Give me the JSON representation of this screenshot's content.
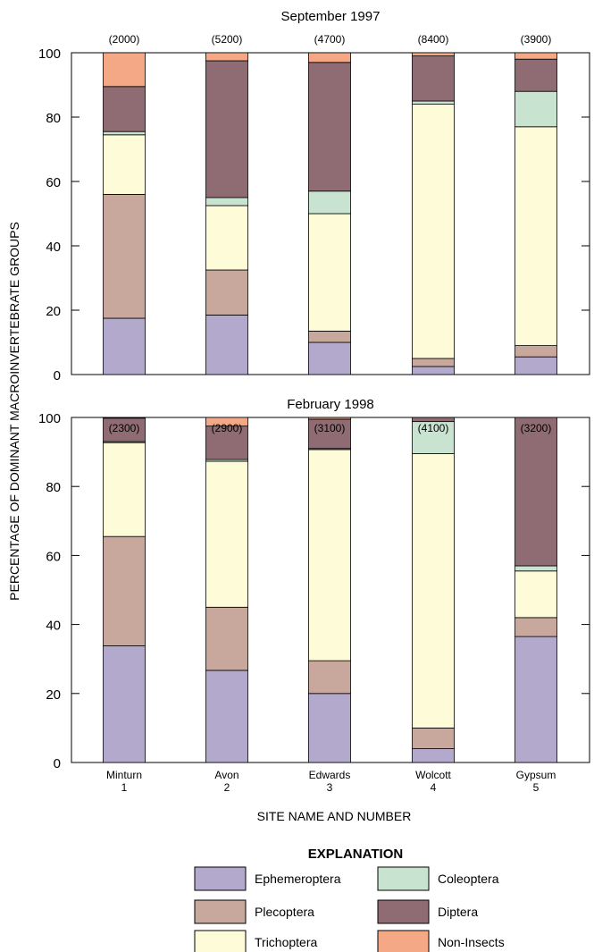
{
  "ylabel": "PERCENTAGE OF DOMINANT MACROINVERTEBRATE GROUPS",
  "xlabel": "SITE NAME AND NUMBER",
  "sites": [
    {
      "name": "Minturn",
      "number": "1"
    },
    {
      "name": "Avon",
      "number": "2"
    },
    {
      "name": "Edwards",
      "number": "3"
    },
    {
      "name": "Wolcott",
      "number": "4"
    },
    {
      "name": "Gypsum",
      "number": "5"
    }
  ],
  "legend": {
    "title": "EXPLANATION",
    "items": [
      {
        "label": "Ephemeroptera",
        "color": "#b3a9cd"
      },
      {
        "label": "Plecoptera",
        "color": "#c8a89c"
      },
      {
        "label": "Trichoptera",
        "color": "#fefbd8"
      },
      {
        "label": "Coleoptera",
        "color": "#c8e4d0"
      },
      {
        "label": "Diptera",
        "color": "#8f6b73"
      },
      {
        "label": "Non-Insects",
        "color": "#f5a885"
      }
    ]
  },
  "chart_data": [
    {
      "type": "bar",
      "stacked": true,
      "title": "September 1997",
      "categories": [
        "Minturn 1",
        "Avon 2",
        "Edwards 3",
        "Wolcott 4",
        "Gypsum 5"
      ],
      "counts": [
        "(2000)",
        "(5200)",
        "(4700)",
        "(8400)",
        "(3900)"
      ],
      "ylim": [
        0,
        100
      ],
      "yticks": [
        0,
        20,
        40,
        60,
        80,
        100
      ],
      "series": [
        {
          "name": "Ephemeroptera",
          "values": [
            17.5,
            18.5,
            10,
            2.5,
            5.5
          ]
        },
        {
          "name": "Plecoptera",
          "values": [
            38.5,
            14,
            3.5,
            2.5,
            3.5
          ]
        },
        {
          "name": "Trichoptera",
          "values": [
            18.5,
            20,
            36.5,
            79,
            68
          ]
        },
        {
          "name": "Coleoptera",
          "values": [
            1,
            2.5,
            7,
            1,
            11
          ]
        },
        {
          "name": "Diptera",
          "values": [
            14,
            42.5,
            40,
            14,
            10
          ]
        },
        {
          "name": "Non-Insects",
          "values": [
            10.5,
            2.5,
            3,
            1,
            2
          ]
        }
      ]
    },
    {
      "type": "bar",
      "stacked": true,
      "title": "February 1998",
      "categories": [
        "Minturn 1",
        "Avon 2",
        "Edwards 3",
        "Wolcott 4",
        "Gypsum 5"
      ],
      "counts": [
        "(2300)",
        "(2900)",
        "(3100)",
        "(4100)",
        "(3200)"
      ],
      "ylim": [
        0,
        100
      ],
      "yticks": [
        0,
        20,
        40,
        60,
        80,
        100
      ],
      "series": [
        {
          "name": "Ephemeroptera",
          "values": [
            33.8,
            26.7,
            20,
            4,
            36.5
          ]
        },
        {
          "name": "Plecoptera",
          "values": [
            31.7,
            18.3,
            9.5,
            6,
            5.5
          ]
        },
        {
          "name": "Trichoptera",
          "values": [
            27.2,
            42.3,
            61.2,
            79.5,
            13.5
          ]
        },
        {
          "name": "Coleoptera",
          "values": [
            0.3,
            0.5,
            0.3,
            9.3,
            1.5
          ]
        },
        {
          "name": "Diptera",
          "values": [
            6.8,
            9.7,
            8.5,
            1.2,
            43
          ]
        },
        {
          "name": "Non-Insects",
          "values": [
            0.2,
            2.5,
            0.5,
            0,
            0
          ]
        }
      ]
    }
  ]
}
